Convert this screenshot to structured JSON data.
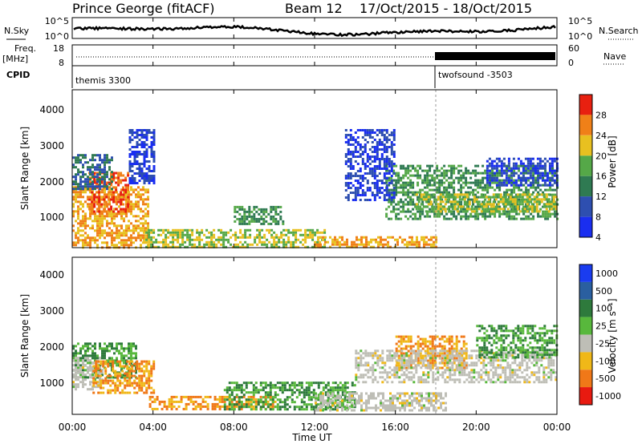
{
  "header": {
    "station": "Prince George (fitACF)",
    "beam": "Beam 12",
    "dates": "17/Oct/2015 - 18/Oct/2015"
  },
  "aux": {
    "nsky_label": "N.Sky",
    "nsearch_label": "N.Search",
    "freq_label_1": "Freq.",
    "freq_label_2": "[MHz]",
    "nave_label": "Nave",
    "cpid_label": "CPID",
    "noise_ticks_left": [
      "10^5",
      "10^0"
    ],
    "noise_ticks_right": [
      "10^5",
      "10^0"
    ],
    "freq_ticks": [
      "18",
      "8"
    ],
    "nave_ticks": [
      "60",
      "0"
    ],
    "cpid_segments": [
      {
        "label": "themis 3300",
        "start_hour": 0,
        "end_hour": 18
      },
      {
        "label": "twofsound -3503",
        "start_hour": 18,
        "end_hour": 24
      }
    ]
  },
  "chart_data": [
    {
      "type": "heatmap",
      "quantity": "Power",
      "ylabel": "Slant Range [km]",
      "ylim": [
        180,
        4600
      ],
      "yticks": [
        "1000",
        "2000",
        "3000",
        "4000"
      ],
      "colorbar_label": "Power [dB]",
      "colorbar_ticks": [
        "4",
        "8",
        "12",
        "16",
        "20",
        "24",
        "28"
      ],
      "colorbar_colors": [
        "#1a2ef0",
        "#2e4fb0",
        "#2f7a52",
        "#55a848",
        "#e8c020",
        "#f08018",
        "#e82010"
      ],
      "regions": [
        {
          "t0": 0.0,
          "t1": 3.8,
          "r0": 180,
          "r1": 1900,
          "value": 24
        },
        {
          "t0": 0.8,
          "t1": 2.8,
          "r0": 1200,
          "r1": 2300,
          "value": 28
        },
        {
          "t0": 0.0,
          "t1": 2.0,
          "r0": 1800,
          "r1": 2800,
          "value": 12
        },
        {
          "t0": 2.8,
          "t1": 4.0,
          "r0": 2000,
          "r1": 3500,
          "value": 8
        },
        {
          "t0": 3.5,
          "t1": 12.5,
          "r0": 200,
          "r1": 700,
          "value": 20
        },
        {
          "t0": 8.0,
          "t1": 10.5,
          "r0": 850,
          "r1": 1350,
          "value": 16
        },
        {
          "t0": 12.0,
          "t1": 18.0,
          "r0": 200,
          "r1": 500,
          "value": 24
        },
        {
          "t0": 15.5,
          "t1": 24.0,
          "r0": 1000,
          "r1": 2500,
          "value": 16
        },
        {
          "t0": 17.0,
          "t1": 24.0,
          "r0": 1200,
          "r1": 1700,
          "value": 20
        },
        {
          "t0": 20.5,
          "t1": 24.0,
          "r0": 1900,
          "r1": 2700,
          "value": 8
        },
        {
          "t0": 13.5,
          "t1": 16.0,
          "r0": 1500,
          "r1": 3500,
          "value": 8
        }
      ]
    },
    {
      "type": "heatmap",
      "quantity": "Velocity",
      "ylabel": "Slant Range [km]",
      "ylim": [
        180,
        4600
      ],
      "yticks": [
        "1000",
        "2000",
        "3000",
        "4000"
      ],
      "colorbar_label": "Velocity [m s⁻¹]",
      "colorbar_ticks": [
        "1000",
        "500",
        "100",
        "25",
        "-25",
        "-100",
        "-500",
        "-1000"
      ],
      "colorbar_colors": [
        "#1a3cf0",
        "#2a5fa0",
        "#2e7a3c",
        "#58b83c",
        "#bebeb6",
        "#f0b818",
        "#f07818",
        "#e81a10"
      ],
      "regions": [
        {
          "t0": 0.0,
          "t1": 3.2,
          "r0": 1200,
          "r1": 2200,
          "value": 100
        },
        {
          "t0": 0.0,
          "t1": 1.5,
          "r0": 900,
          "r1": 1800,
          "value": 0
        },
        {
          "t0": 1.0,
          "t1": 4.0,
          "r0": 800,
          "r1": 1700,
          "value": -100
        },
        {
          "t0": 3.8,
          "t1": 10.0,
          "r0": 300,
          "r1": 700,
          "value": -100
        },
        {
          "t0": 7.5,
          "t1": 14.0,
          "r0": 300,
          "r1": 1100,
          "value": 100
        },
        {
          "t0": 12.0,
          "t1": 18.5,
          "r0": 300,
          "r1": 800,
          "value": 0
        },
        {
          "t0": 16.0,
          "t1": 19.5,
          "r0": 1500,
          "r1": 2400,
          "value": -100
        },
        {
          "t0": 14.0,
          "t1": 24.0,
          "r0": 1100,
          "r1": 2000,
          "value": 0
        },
        {
          "t0": 20.0,
          "t1": 24.0,
          "r0": 1800,
          "r1": 2700,
          "value": 100
        }
      ]
    }
  ],
  "xaxis": {
    "label": "Time UT",
    "xlim": [
      0,
      24
    ],
    "ticks": [
      "00:00",
      "04:00",
      "08:00",
      "12:00",
      "16:00",
      "20:00",
      "00:00"
    ]
  }
}
